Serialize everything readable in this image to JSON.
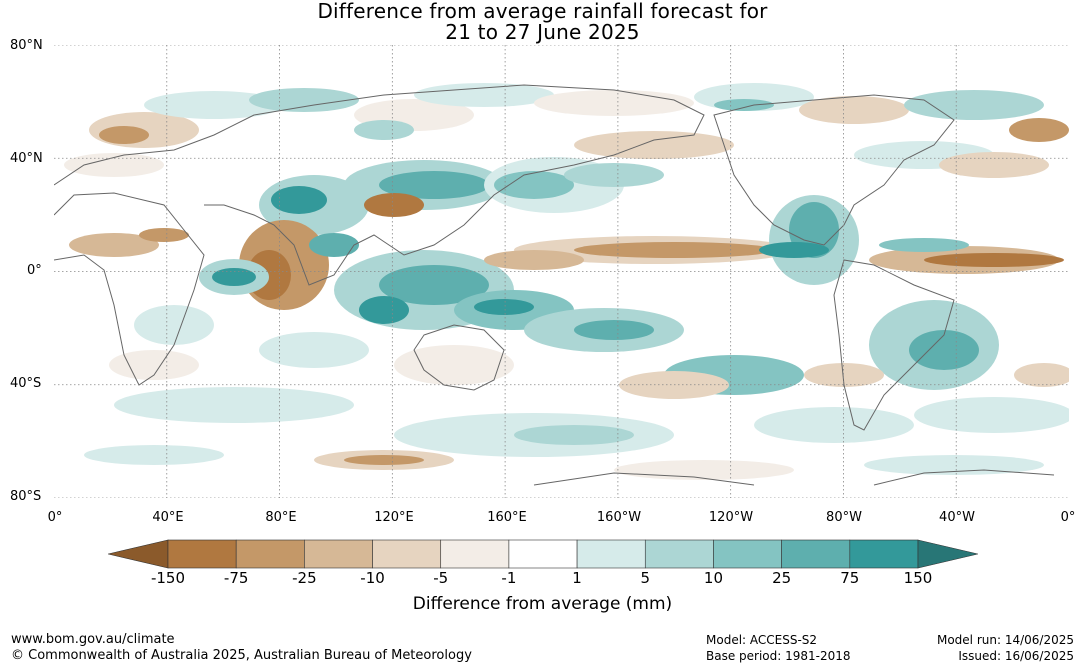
{
  "title_line1": "Difference from average rainfall forecast for",
  "title_line2": "21 to 27 June 2025",
  "map": {
    "lat_labels": [
      "80°N",
      "40°N",
      "0°",
      "40°S",
      "80°S"
    ],
    "lon_labels": [
      "0°",
      "40°E",
      "80°E",
      "120°E",
      "160°E",
      "160°W",
      "120°W",
      "80°W",
      "40°W",
      "0°"
    ],
    "grid": "dotted",
    "projection": "equirectangular"
  },
  "legend": {
    "title": "Difference from average (mm)",
    "tick_labels": [
      "-150",
      "-75",
      "-25",
      "-10",
      "-5",
      "-1",
      "1",
      "5",
      "10",
      "25",
      "75",
      "150"
    ],
    "colors": [
      "#8b5a2b",
      "#b07840",
      "#c49868",
      "#d6b896",
      "#e6d4c0",
      "#f3ede7",
      "#ffffff",
      "#d6ebea",
      "#acd6d4",
      "#84c4c2",
      "#5eafae",
      "#33999a",
      "#287676"
    ]
  },
  "footer": {
    "url": "www.bom.gov.au/climate",
    "copyright": "© Commonwealth of Australia 2025, Australian Bureau of Meteorology",
    "model": "Model: ACCESS-S2",
    "base_period": "Base period: 1981-2018",
    "model_run": "Model run: 14/06/2025",
    "issued": "Issued: 16/06/2025"
  }
}
